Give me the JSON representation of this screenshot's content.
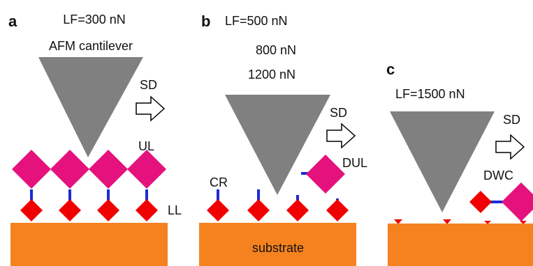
{
  "panels": [
    {
      "label": "a",
      "load": "LF=300 nN",
      "tip": "AFM cantilever",
      "direction": "SD",
      "upper": "UL",
      "lower": "LL"
    },
    {
      "label": "b",
      "loads": [
        "LF=500 nN",
        "800 nN",
        "1200 nN"
      ],
      "direction": "SD",
      "detached": "DUL",
      "remnant": "CR",
      "base": "substrate"
    },
    {
      "label": "c",
      "load": "LF=1500 nN",
      "direction": "SD",
      "detached": "DWC"
    }
  ]
}
